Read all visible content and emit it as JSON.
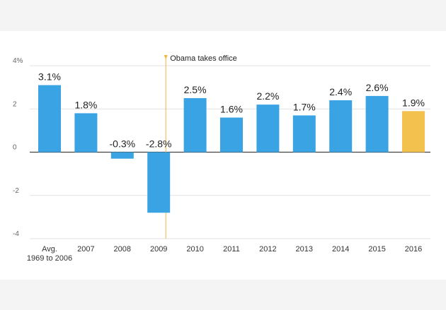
{
  "chart_data": {
    "type": "bar",
    "title": "",
    "xlabel": "",
    "ylabel": "",
    "ylim": [
      -4,
      4
    ],
    "yticks": [
      {
        "value": 4,
        "label": "4%"
      },
      {
        "value": 2,
        "label": "2"
      },
      {
        "value": 0,
        "label": "0"
      },
      {
        "value": -2,
        "label": "-2"
      },
      {
        "value": -4,
        "label": "-4"
      }
    ],
    "categories": [
      [
        "Avg.",
        "1969 to 2006"
      ],
      [
        "2007"
      ],
      [
        "2008"
      ],
      [
        "2009"
      ],
      [
        "2010"
      ],
      [
        "2011"
      ],
      [
        "2012"
      ],
      [
        "2013"
      ],
      [
        "2014"
      ],
      [
        "2015"
      ],
      [
        "2016"
      ]
    ],
    "values": [
      3.1,
      1.8,
      -0.3,
      -2.8,
      2.5,
      1.6,
      2.2,
      1.7,
      2.4,
      2.6,
      1.9
    ],
    "value_labels": [
      "3.1%",
      "1.8%",
      "-0.3%",
      "-2.8%",
      "2.5%",
      "1.6%",
      "2.2%",
      "1.7%",
      "2.4%",
      "2.6%",
      "1.9%"
    ],
    "bar_colors": [
      "#3aa3e3",
      "#3aa3e3",
      "#3aa3e3",
      "#3aa3e3",
      "#3aa3e3",
      "#3aa3e3",
      "#3aa3e3",
      "#3aa3e3",
      "#3aa3e3",
      "#3aa3e3",
      "#f2c14e"
    ],
    "grid": true,
    "annotation": {
      "text": "Obama takes office",
      "category_index": 3,
      "color": "#f2b33d"
    }
  }
}
